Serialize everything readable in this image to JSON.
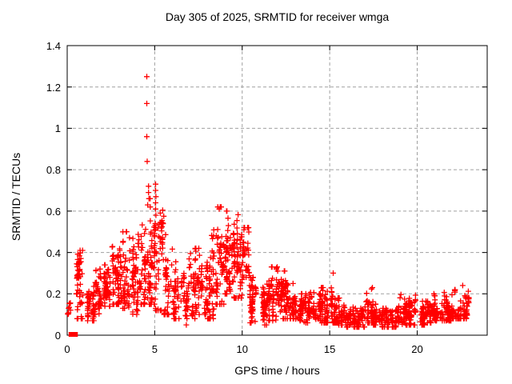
{
  "chart_data": {
    "type": "scatter",
    "title": "Day 305 of 2025, SRMTID for receiver wmga",
    "xlabel": "GPS time / hours",
    "ylabel": "SRMTID / TECUs",
    "xlim": [
      0,
      24
    ],
    "ylim": [
      0,
      1.4
    ],
    "xticks": [
      {
        "v": 0,
        "label": "0"
      },
      {
        "v": 5,
        "label": "5"
      },
      {
        "v": 10,
        "label": "10"
      },
      {
        "v": 15,
        "label": "15"
      },
      {
        "v": 20,
        "label": "20"
      }
    ],
    "yticks": [
      {
        "v": 0,
        "label": "0"
      },
      {
        "v": 0.2,
        "label": "0.2"
      },
      {
        "v": 0.4,
        "label": "0.4"
      },
      {
        "v": 0.6,
        "label": "0.6"
      },
      {
        "v": 0.8,
        "label": "0.8"
      },
      {
        "v": 1.0,
        "label": "1"
      },
      {
        "v": 1.2,
        "label": "1.2"
      },
      {
        "v": 1.4,
        "label": "1.4"
      }
    ],
    "grid": {
      "show": true,
      "style": "dashed",
      "color": "#a0a0a0"
    },
    "legend": null,
    "marker": {
      "shape": "plus",
      "color": "#ff0000",
      "size": 7
    },
    "series_name": "SRMTID",
    "envelope_bins": [
      [
        0.0,
        0.25,
        10,
        0.1,
        0.21,
        0.15
      ],
      [
        0.5,
        1.0,
        55,
        0.08,
        0.41,
        0.2
      ],
      [
        1.0,
        1.5,
        45,
        0.07,
        0.23,
        0.14
      ],
      [
        1.5,
        2.0,
        50,
        0.1,
        0.32,
        0.2
      ],
      [
        2.0,
        2.5,
        55,
        0.14,
        0.34,
        0.24
      ],
      [
        2.5,
        3.0,
        60,
        0.15,
        0.5,
        0.27
      ],
      [
        3.0,
        3.5,
        55,
        0.13,
        0.5,
        0.28
      ],
      [
        3.5,
        4.0,
        50,
        0.1,
        0.52,
        0.27
      ],
      [
        4.0,
        4.5,
        55,
        0.15,
        0.61,
        0.3
      ],
      [
        4.5,
        5.0,
        65,
        0.15,
        0.66,
        0.3
      ],
      [
        5.0,
        5.5,
        55,
        0.12,
        0.62,
        0.3
      ],
      [
        5.5,
        6.0,
        45,
        0.1,
        0.5,
        0.25
      ],
      [
        6.0,
        6.5,
        45,
        0.08,
        0.5,
        0.22
      ],
      [
        6.5,
        7.0,
        40,
        0.05,
        0.35,
        0.18
      ],
      [
        7.0,
        7.5,
        50,
        0.08,
        0.42,
        0.25
      ],
      [
        7.5,
        8.0,
        45,
        0.1,
        0.42,
        0.22
      ],
      [
        8.0,
        8.5,
        55,
        0.08,
        0.6,
        0.28
      ],
      [
        8.5,
        9.0,
        60,
        0.15,
        0.62,
        0.32
      ],
      [
        9.0,
        9.5,
        65,
        0.2,
        0.6,
        0.35
      ],
      [
        9.5,
        10.0,
        70,
        0.18,
        0.6,
        0.35
      ],
      [
        10.0,
        10.4,
        40,
        0.28,
        0.52,
        0.38
      ],
      [
        10.4,
        11.0,
        55,
        0.06,
        0.28,
        0.15
      ],
      [
        11.0,
        11.5,
        50,
        0.05,
        0.25,
        0.13
      ],
      [
        11.5,
        12.0,
        55,
        0.07,
        0.33,
        0.16
      ],
      [
        12.0,
        12.5,
        55,
        0.08,
        0.31,
        0.18
      ],
      [
        12.5,
        13.0,
        50,
        0.08,
        0.25,
        0.14
      ],
      [
        13.0,
        13.5,
        45,
        0.07,
        0.2,
        0.12
      ],
      [
        13.5,
        14.0,
        45,
        0.06,
        0.22,
        0.12
      ],
      [
        14.0,
        14.5,
        50,
        0.07,
        0.25,
        0.13
      ],
      [
        14.5,
        15.0,
        50,
        0.06,
        0.23,
        0.12
      ],
      [
        15.0,
        15.5,
        55,
        0.06,
        0.3,
        0.14
      ],
      [
        15.5,
        16.0,
        45,
        0.05,
        0.18,
        0.1
      ],
      [
        16.0,
        16.5,
        45,
        0.04,
        0.15,
        0.08
      ],
      [
        16.5,
        17.0,
        45,
        0.04,
        0.13,
        0.08
      ],
      [
        17.0,
        17.5,
        50,
        0.06,
        0.23,
        0.11
      ],
      [
        17.5,
        18.0,
        45,
        0.05,
        0.15,
        0.09
      ],
      [
        18.0,
        18.5,
        45,
        0.04,
        0.13,
        0.08
      ],
      [
        18.5,
        19.0,
        45,
        0.04,
        0.14,
        0.08
      ],
      [
        19.0,
        19.5,
        50,
        0.05,
        0.2,
        0.1
      ],
      [
        19.5,
        20.0,
        50,
        0.05,
        0.22,
        0.1
      ],
      [
        20.0,
        20.5,
        45,
        0.05,
        0.17,
        0.09
      ],
      [
        20.5,
        21.0,
        50,
        0.06,
        0.2,
        0.1
      ],
      [
        21.0,
        21.5,
        50,
        0.07,
        0.18,
        0.1
      ],
      [
        21.5,
        22.0,
        55,
        0.07,
        0.22,
        0.11
      ],
      [
        22.0,
        22.5,
        55,
        0.08,
        0.22,
        0.12
      ],
      [
        22.5,
        22.95,
        50,
        0.08,
        0.24,
        0.13
      ]
    ],
    "outlier_points": [
      [
        4.55,
        1.25
      ],
      [
        4.55,
        1.12
      ],
      [
        4.55,
        0.96
      ],
      [
        4.57,
        0.84
      ],
      [
        4.65,
        0.72
      ],
      [
        4.65,
        0.69
      ],
      [
        4.67,
        0.66
      ],
      [
        4.6,
        0.63
      ],
      [
        5.05,
        0.73
      ],
      [
        5.05,
        0.7
      ],
      [
        5.07,
        0.67
      ],
      [
        5.05,
        0.64
      ],
      [
        5.05,
        0.61
      ],
      [
        5.07,
        0.58
      ],
      [
        10.1,
        0.51
      ],
      [
        12.0,
        0.33
      ],
      [
        15.2,
        0.3
      ],
      [
        22.6,
        0.24
      ]
    ],
    "zero_square_points": [
      [
        0.22,
        0.0
      ],
      [
        0.42,
        0.0
      ],
      [
        0.47,
        0.0
      ]
    ]
  }
}
